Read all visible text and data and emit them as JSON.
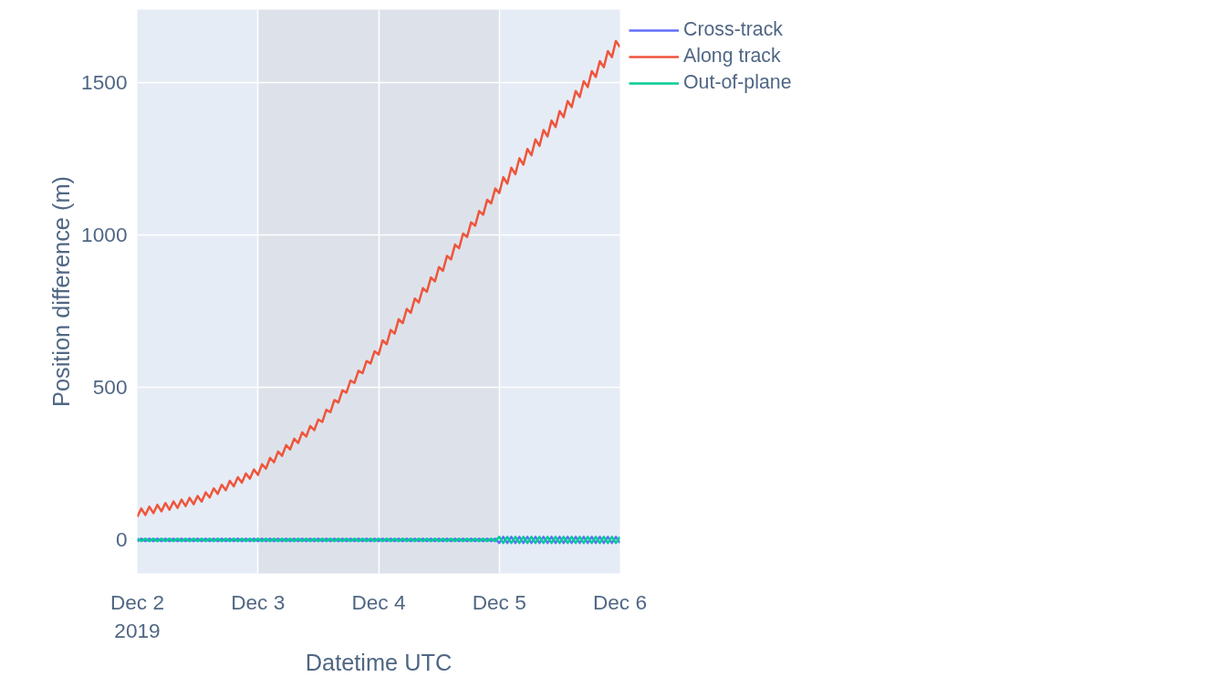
{
  "chart_data": {
    "type": "line",
    "xlabel": "Datetime UTC",
    "ylabel": "Position difference (m)",
    "x": [
      "2019-12-02T00:00",
      "2019-12-02T00:48",
      "2019-12-02T01:36",
      "2019-12-02T02:24",
      "2019-12-02T03:12",
      "2019-12-02T04:00",
      "2019-12-02T04:48",
      "2019-12-02T05:36",
      "2019-12-02T06:24",
      "2019-12-02T07:12",
      "2019-12-02T08:00",
      "2019-12-02T08:48",
      "2019-12-02T09:36",
      "2019-12-02T10:24",
      "2019-12-02T11:12",
      "2019-12-02T12:00",
      "2019-12-02T12:48",
      "2019-12-02T13:36",
      "2019-12-02T14:24",
      "2019-12-02T15:12",
      "2019-12-02T16:00",
      "2019-12-02T16:48",
      "2019-12-02T17:36",
      "2019-12-02T18:24",
      "2019-12-02T19:12",
      "2019-12-02T20:00",
      "2019-12-02T20:48",
      "2019-12-02T21:36",
      "2019-12-02T22:24",
      "2019-12-02T23:12",
      "2019-12-03T00:00",
      "2019-12-03T00:48",
      "2019-12-03T01:36",
      "2019-12-03T02:24",
      "2019-12-03T03:12",
      "2019-12-03T04:00",
      "2019-12-03T04:48",
      "2019-12-03T05:36",
      "2019-12-03T06:24",
      "2019-12-03T07:12",
      "2019-12-03T08:00",
      "2019-12-03T08:48",
      "2019-12-03T09:36",
      "2019-12-03T10:24",
      "2019-12-03T11:12",
      "2019-12-03T12:00",
      "2019-12-03T12:48",
      "2019-12-03T13:36",
      "2019-12-03T14:24",
      "2019-12-03T15:12",
      "2019-12-03T16:00",
      "2019-12-03T16:48",
      "2019-12-03T17:36",
      "2019-12-03T18:24",
      "2019-12-03T19:12",
      "2019-12-03T20:00",
      "2019-12-03T20:48",
      "2019-12-03T21:36",
      "2019-12-03T22:24",
      "2019-12-03T23:12",
      "2019-12-04T00:00",
      "2019-12-04T00:48",
      "2019-12-04T01:36",
      "2019-12-04T02:24",
      "2019-12-04T03:12",
      "2019-12-04T04:00",
      "2019-12-04T04:48",
      "2019-12-04T05:36",
      "2019-12-04T06:24",
      "2019-12-04T07:12",
      "2019-12-04T08:00",
      "2019-12-04T08:48",
      "2019-12-04T09:36",
      "2019-12-04T10:24",
      "2019-12-04T11:12",
      "2019-12-04T12:00",
      "2019-12-04T12:48",
      "2019-12-04T13:36",
      "2019-12-04T14:24",
      "2019-12-04T15:12",
      "2019-12-04T16:00",
      "2019-12-04T16:48",
      "2019-12-04T17:36",
      "2019-12-04T18:24",
      "2019-12-04T19:12",
      "2019-12-04T20:00",
      "2019-12-04T20:48",
      "2019-12-04T21:36",
      "2019-12-04T22:24",
      "2019-12-04T23:12",
      "2019-12-05T00:00",
      "2019-12-05T00:48",
      "2019-12-05T01:36",
      "2019-12-05T02:24",
      "2019-12-05T03:12",
      "2019-12-05T04:00",
      "2019-12-05T04:48",
      "2019-12-05T05:36",
      "2019-12-05T06:24",
      "2019-12-05T07:12",
      "2019-12-05T08:00",
      "2019-12-05T08:48",
      "2019-12-05T09:36",
      "2019-12-05T10:24",
      "2019-12-05T11:12",
      "2019-12-05T12:00",
      "2019-12-05T12:48",
      "2019-12-05T13:36",
      "2019-12-05T14:24",
      "2019-12-05T15:12",
      "2019-12-05T16:00",
      "2019-12-05T16:48",
      "2019-12-05T17:36",
      "2019-12-05T18:24",
      "2019-12-05T19:12",
      "2019-12-05T20:00",
      "2019-12-05T20:48",
      "2019-12-05T21:36",
      "2019-12-05T22:24",
      "2019-12-05T23:12",
      "2019-12-06T00:00"
    ],
    "series": [
      {
        "name": "Cross-track",
        "color": "#636efa",
        "values": [
          -4,
          4,
          -4,
          4,
          -4,
          4,
          -4,
          4,
          -4,
          4,
          -4,
          4,
          -4,
          4,
          -4,
          4,
          -4,
          4,
          -4,
          4,
          -4,
          4,
          -4,
          4,
          -4,
          4,
          -4,
          4,
          -4,
          4,
          -4,
          4,
          -4,
          4,
          -4,
          4,
          -4,
          4,
          -4,
          4,
          -4,
          4,
          -4,
          4,
          -4,
          4,
          -4,
          4,
          -4,
          4,
          -4,
          4,
          -4,
          4,
          -4,
          4,
          -4,
          4,
          -4,
          4,
          -4,
          4,
          -4,
          4,
          -4,
          4,
          -4,
          4,
          -4,
          4,
          -4,
          4,
          -4,
          4,
          -4,
          4,
          -4,
          4,
          -4,
          4,
          -4,
          4,
          -4,
          4,
          -4,
          4,
          -4,
          4,
          -4,
          4,
          -10,
          10,
          -10,
          10,
          -10,
          10,
          -10,
          10,
          -10,
          10,
          -10,
          10,
          -10,
          10,
          -10,
          10,
          -10,
          10,
          -10,
          10,
          -10,
          10,
          -10,
          10,
          -10,
          10,
          -10,
          10,
          -10,
          10,
          -10
        ]
      },
      {
        "name": "Along track",
        "color": "#ef553b",
        "values": [
          76,
          103,
          82,
          109,
          88,
          115,
          94,
          121,
          99,
          126,
          105,
          132,
          111,
          138,
          117,
          144,
          126,
          156,
          139,
          169,
          151,
          181,
          163,
          194,
          176,
          206,
          188,
          218,
          201,
          231,
          213,
          248,
          234,
          269,
          255,
          290,
          276,
          311,
          297,
          332,
          318,
          353,
          339,
          374,
          360,
          395,
          387,
          427,
          419,
          459,
          451,
          491,
          483,
          523,
          515,
          555,
          547,
          587,
          579,
          619,
          608,
          655,
          642,
          689,
          677,
          724,
          711,
          758,
          745,
          792,
          779,
          826,
          814,
          861,
          848,
          895,
          883,
          932,
          920,
          969,
          957,
          1005,
          994,
          1042,
          1031,
          1079,
          1067,
          1116,
          1104,
          1153,
          1138,
          1190,
          1169,
          1221,
          1200,
          1252,
          1231,
          1283,
          1262,
          1314,
          1293,
          1345,
          1324,
          1376,
          1355,
          1407,
          1387,
          1440,
          1420,
          1473,
          1453,
          1505,
          1486,
          1538,
          1519,
          1571,
          1551,
          1604,
          1584,
          1637,
          1617
        ]
      },
      {
        "name": "Out-of-plane",
        "color": "#00cc96",
        "values": [
          4,
          -4,
          4,
          -4,
          4,
          -4,
          4,
          -4,
          4,
          -4,
          4,
          -4,
          4,
          -4,
          4,
          -4,
          4,
          -4,
          4,
          -4,
          4,
          -4,
          4,
          -4,
          4,
          -4,
          4,
          -4,
          4,
          -4,
          4,
          -4,
          4,
          -4,
          4,
          -4,
          4,
          -4,
          4,
          -4,
          4,
          -4,
          4,
          -4,
          4,
          -4,
          4,
          -4,
          4,
          -4,
          4,
          -4,
          4,
          -4,
          4,
          -4,
          4,
          -4,
          4,
          -4,
          4,
          -4,
          4,
          -4,
          4,
          -4,
          4,
          -4,
          4,
          -4,
          4,
          -4,
          4,
          -4,
          4,
          -4,
          4,
          -4,
          4,
          -4,
          4,
          -4,
          4,
          -4,
          4,
          -4,
          4,
          -4,
          4,
          -4,
          10,
          -10,
          10,
          -10,
          10,
          -10,
          10,
          -10,
          10,
          -10,
          10,
          -10,
          10,
          -10,
          10,
          -10,
          10,
          -10,
          10,
          -10,
          10,
          -10,
          10,
          -10,
          10,
          -10,
          10,
          -10,
          10,
          -10,
          10
        ]
      }
    ],
    "xlim": [
      "2019-12-02",
      "2019-12-06"
    ],
    "xticks": [
      {
        "value": "2019-12-02",
        "label": "Dec 2\n2019"
      },
      {
        "value": "2019-12-03",
        "label": "Dec 3"
      },
      {
        "value": "2019-12-04",
        "label": "Dec 4"
      },
      {
        "value": "2019-12-05",
        "label": "Dec 5"
      },
      {
        "value": "2019-12-06",
        "label": "Dec 6"
      }
    ],
    "ylim": [
      -110,
      1740
    ],
    "yticks": [
      0,
      500,
      1000,
      1500
    ],
    "bands": [
      {
        "axis": "x",
        "from": "2019-12-03",
        "to": "2019-12-05",
        "color": "#dde2ea"
      }
    ],
    "grid": true,
    "legend": "top right",
    "line_style": "solid",
    "marker": "none"
  }
}
